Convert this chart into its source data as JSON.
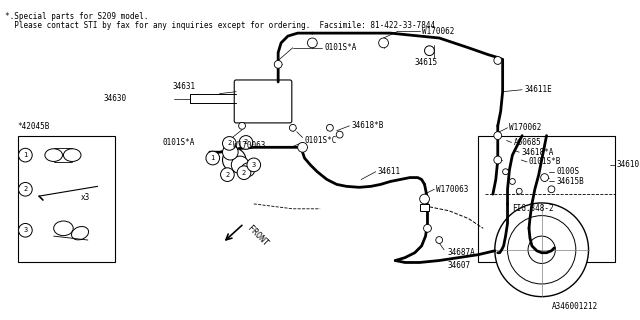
{
  "background_color": "#ffffff",
  "line_color": "#000000",
  "text_color": "#000000",
  "fig_width": 6.4,
  "fig_height": 3.2,
  "dpi": 100,
  "header_line1": "*.Special parts for S209 model.",
  "header_line2": "  Please contact STI by fax for any inquiries except for ordering.  Facsimile: 81-422-33-7844",
  "footer_code": "A346001212"
}
